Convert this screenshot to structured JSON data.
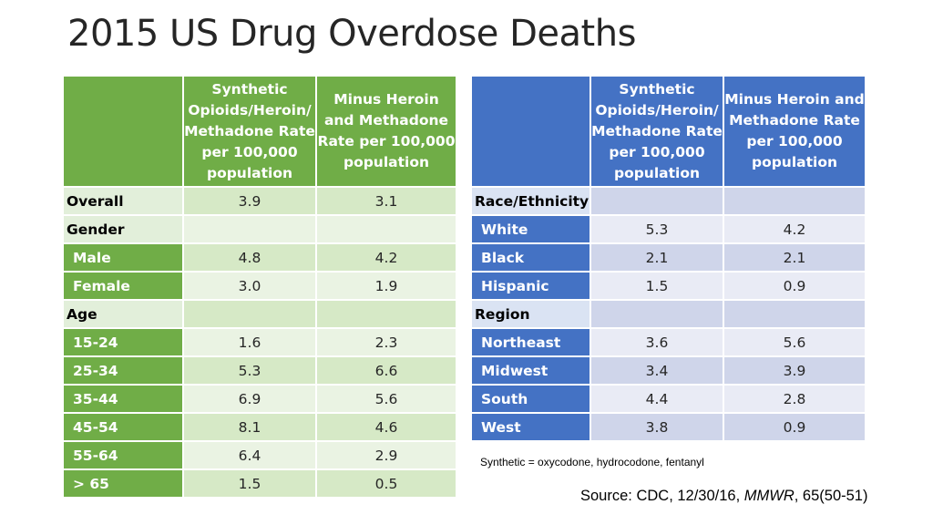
{
  "title": "2015 US Drug Overdose Deaths",
  "colors": {
    "green": "#70ad47",
    "blue": "#4472c4"
  },
  "col_headers": {
    "synthetic": "Synthetic Opioids/Heroin/ Methadone Rate per 100,000 population",
    "minus_heroin": "Minus Heroin and Methadone Rate per 100,000 population"
  },
  "left_table": {
    "rows": [
      {
        "label": "Overall",
        "synthetic": "3.9",
        "minus": "3.1"
      },
      {
        "label": "Gender",
        "synthetic": "",
        "minus": ""
      },
      {
        "label": "Male",
        "synthetic": "4.8",
        "minus": "4.2"
      },
      {
        "label": "Female",
        "synthetic": "3.0",
        "minus": "1.9"
      },
      {
        "label": "Age",
        "synthetic": "",
        "minus": ""
      },
      {
        "label": "15-24",
        "synthetic": "1.6",
        "minus": "2.3"
      },
      {
        "label": "25-34",
        "synthetic": "5.3",
        "minus": "6.6"
      },
      {
        "label": "35-44",
        "synthetic": "6.9",
        "minus": "5.6"
      },
      {
        "label": "45-54",
        "synthetic": "8.1",
        "minus": "4.6"
      },
      {
        "label": "55-64",
        "synthetic": "6.4",
        "minus": "2.9"
      },
      {
        "label": "> 65",
        "synthetic": "1.5",
        "minus": "0.5"
      }
    ]
  },
  "right_table": {
    "rows": [
      {
        "label": "Race/Ethnicity",
        "synthetic": "",
        "minus": ""
      },
      {
        "label": "White",
        "synthetic": "5.3",
        "minus": "4.2"
      },
      {
        "label": "Black",
        "synthetic": "2.1",
        "minus": "2.1"
      },
      {
        "label": "Hispanic",
        "synthetic": "1.5",
        "minus": "0.9"
      },
      {
        "label": "Region",
        "synthetic": "",
        "minus": ""
      },
      {
        "label": "Northeast",
        "synthetic": "3.6",
        "minus": "5.6"
      },
      {
        "label": "Midwest",
        "synthetic": "3.4",
        "minus": "3.9"
      },
      {
        "label": "South",
        "synthetic": "4.4",
        "minus": "2.8"
      },
      {
        "label": "West",
        "synthetic": "3.8",
        "minus": "0.9"
      }
    ]
  },
  "footnote": "Synthetic = oxycodone, hydrocodone, fentanyl",
  "source": {
    "prefix": "Source: CDC, 12/30/16, ",
    "journal": "MMWR",
    "suffix": ", 65(50-51)"
  }
}
